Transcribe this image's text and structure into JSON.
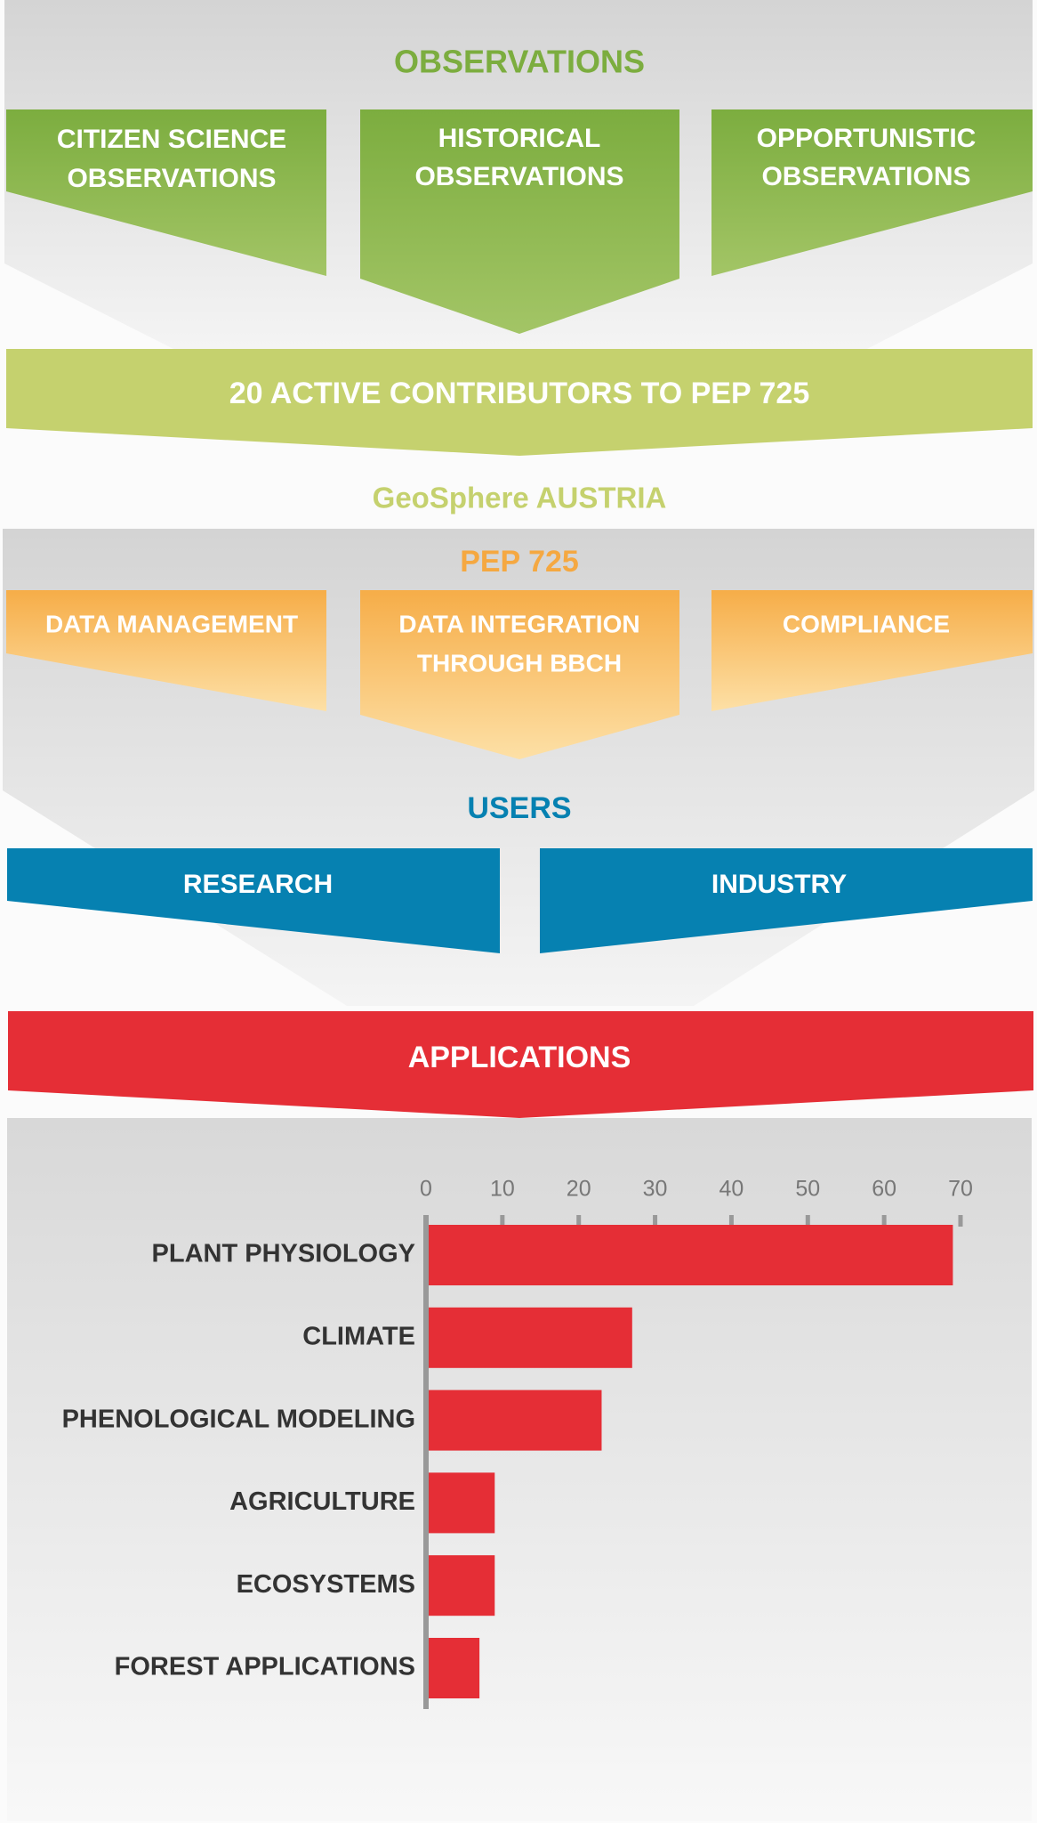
{
  "observations": {
    "title": "OBSERVATIONS",
    "boxes": [
      [
        "CITIZEN SCIENCE",
        "OBSERVATIONS"
      ],
      [
        "HISTORICAL",
        "OBSERVATIONS"
      ],
      [
        "OPPORTUNISTIC",
        "OBSERVATIONS"
      ]
    ]
  },
  "contributors": "20 ACTIVE CONTRIBUTORS TO PEP 725",
  "organization": "GeoSphere AUSTRIA",
  "pep": {
    "title": "PEP 725",
    "boxes": [
      [
        "DATA MANAGEMENT"
      ],
      [
        "DATA INTEGRATION",
        "THROUGH BBCH"
      ],
      [
        "COMPLIANCE"
      ]
    ]
  },
  "users": {
    "title": "USERS",
    "boxes": [
      "RESEARCH",
      "INDUSTRY"
    ]
  },
  "applications": "APPLICATIONS",
  "chart_data": {
    "type": "bar",
    "orientation": "horizontal",
    "categories": [
      "PLANT PHYSIOLOGY",
      "CLIMATE",
      "PHENOLOGICAL MODELING",
      "AGRICULTURE",
      "ECOSYSTEMS",
      "FOREST APPLICATIONS"
    ],
    "values": [
      69,
      27,
      23,
      9,
      9,
      7
    ],
    "color": "#e52e36",
    "xlim": [
      0,
      70
    ],
    "xticks": [
      0,
      10,
      20,
      30,
      40,
      50,
      60,
      70
    ]
  }
}
